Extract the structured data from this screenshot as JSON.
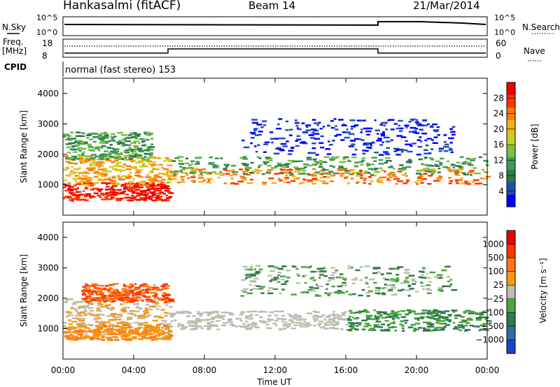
{
  "header": {
    "station": "Hankasalmi (fitACF)",
    "beam": "Beam 14",
    "date": "21/Mar/2014"
  },
  "status_panels": {
    "nsky_label": "N.Sky",
    "nsky_ticks": [
      "10^5",
      "10^0"
    ],
    "nsearch_label": "N.Search",
    "nsearch_ticks": [
      "10^5",
      "10^0"
    ],
    "freq_label_line1": "Freq.",
    "freq_label_line2": "[MHz]",
    "freq_ticks": [
      "18",
      "8"
    ],
    "nave_label": "Nave",
    "nave_ticks": [
      "60",
      "0"
    ],
    "cpid_label": "CPID",
    "cpid_text": "normal (fast stereo) 153"
  },
  "chart_data": [
    {
      "type": "heatmap",
      "title": "",
      "ylabel": "Slant Range [km]",
      "xlabel": "",
      "x_range_hours": [
        0,
        24
      ],
      "ylim": [
        0,
        4500
      ],
      "yticks": [
        "1000",
        "2000",
        "3000",
        "4000"
      ],
      "colorbar": {
        "label": "Power [dB]",
        "ticks": [
          "4",
          "8",
          "12",
          "16",
          "20",
          "24",
          "28"
        ],
        "colors": [
          "#0000ff",
          "#1f4fb4",
          "#2b7a4b",
          "#3f9a5a",
          "#7ac043",
          "#c9d01e",
          "#f2b21a",
          "#ff7a10",
          "#ff3300",
          "#ee0000"
        ]
      }
    },
    {
      "type": "heatmap",
      "title": "",
      "ylabel": "Slant Range [km]",
      "xlabel": "Time UT",
      "x_range_hours": [
        0,
        24
      ],
      "ylim": [
        0,
        4500
      ],
      "yticks": [
        "1000",
        "2000",
        "3000",
        "4000"
      ],
      "xticks": [
        "00:00",
        "04:00",
        "08:00",
        "12:00",
        "16:00",
        "20:00",
        "00:00"
      ],
      "colorbar": {
        "label": "Velocity [m s⁻¹]",
        "ticks": [
          "1000",
          "500",
          "100",
          "25",
          "−25",
          "−100",
          "−500",
          "−1000"
        ],
        "colors": [
          "#1a44c8",
          "#2e6ea0",
          "#2f7a4a",
          "#4aa63e",
          "#bdbdb2",
          "#f29a1a",
          "#ff7a10",
          "#ff3300",
          "#ee0000"
        ]
      }
    }
  ]
}
